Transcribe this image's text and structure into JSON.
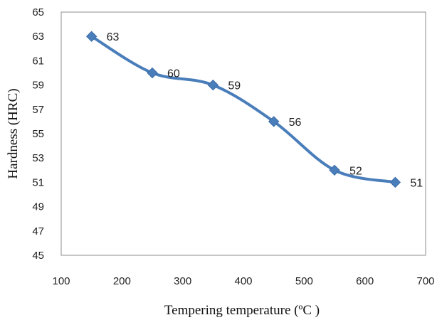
{
  "chart_data": {
    "type": "line",
    "title": "",
    "xlabel": "Tempering temperature (ºC )",
    "ylabel": "Hardness (HRC)",
    "xlim": [
      100,
      700
    ],
    "ylim": [
      45,
      65
    ],
    "xticks": [
      "100",
      "200",
      "300",
      "400",
      "500",
      "600",
      "700"
    ],
    "yticks": [
      "45",
      "47",
      "49",
      "51",
      "53",
      "55",
      "57",
      "59",
      "61",
      "63",
      "65"
    ],
    "grid": false,
    "legend": "none",
    "smooth": true,
    "marker": "diamond",
    "color": "#4a7ebb",
    "series": [
      {
        "x": [
          150,
          250,
          350,
          450,
          550,
          650
        ],
        "y": [
          63,
          60,
          59,
          56,
          52,
          51
        ],
        "labels": [
          "63",
          "60",
          "59",
          "56",
          "52",
          "51"
        ]
      }
    ]
  }
}
